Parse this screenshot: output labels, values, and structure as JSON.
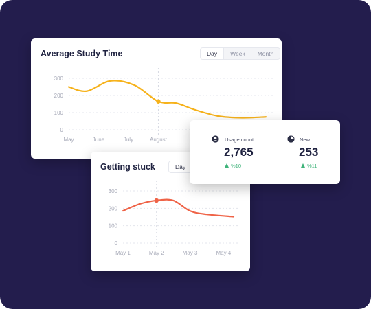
{
  "colors": {
    "background": "#231d4d",
    "card": "#ffffff",
    "study_line": "#f6b21b",
    "stuck_line": "#ef6347",
    "positive": "#3fb37a",
    "title_text": "#1f2240",
    "axis_text": "#a7aab8"
  },
  "study": {
    "title": "Average Study Time",
    "tabs": [
      {
        "label": "Day",
        "active": true
      },
      {
        "label": "Week",
        "active": false
      },
      {
        "label": "Month",
        "active": false
      }
    ]
  },
  "stuck": {
    "title": "Getting stuck",
    "tabs": [
      {
        "label": "Day",
        "active": true
      }
    ]
  },
  "stats": {
    "usage": {
      "icon": "user-icon",
      "label": "Usage count",
      "value": "2,765",
      "change": "%10"
    },
    "new": {
      "icon": "pie-icon",
      "label": "New",
      "value": "253",
      "change": "%11"
    }
  },
  "chart_data": [
    {
      "type": "line",
      "title": "Average Study Time",
      "x": [
        "May",
        "June",
        "July",
        "August"
      ],
      "xlim": [
        0,
        6.6
      ],
      "ylim": [
        0,
        300
      ],
      "yticks": [
        0,
        100,
        200,
        300
      ],
      "grid": "horizontal-dashed",
      "series": [
        {
          "x": [
            0,
            0.6,
            1.4,
            2.2,
            3.0,
            3.6,
            4.2,
            5.0,
            5.8,
            6.6
          ],
          "values": [
            250,
            225,
            285,
            260,
            165,
            155,
            118,
            80,
            70,
            75
          ]
        }
      ],
      "highlight": {
        "x": 3.0,
        "value": 165
      }
    },
    {
      "type": "line",
      "title": "Getting stuck",
      "x": [
        "May 1",
        "May 2",
        "May 3",
        "May 4"
      ],
      "xlim": [
        0,
        3.3
      ],
      "ylim": [
        0,
        300
      ],
      "yticks": [
        0,
        100,
        200,
        300
      ],
      "grid": "horizontal-dashed",
      "series": [
        {
          "x": [
            0,
            0.5,
            1.0,
            1.5,
            2.0,
            2.5,
            3.3
          ],
          "values": [
            185,
            225,
            245,
            245,
            185,
            165,
            152
          ]
        }
      ],
      "highlight": {
        "x": 1.0,
        "value": 245
      }
    }
  ]
}
